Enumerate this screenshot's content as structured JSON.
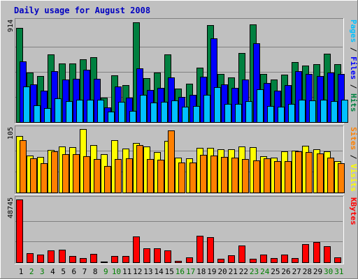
{
  "title": "Daily usage for August 2008",
  "colors": {
    "background": "#c0c0c0",
    "plot_background": "#c0c0c0",
    "border_light": "#ffffff",
    "border_dark": "#808080",
    "grid": "#808080",
    "title_text": "#0000c0",
    "hits": "#008040",
    "files": "#0000ff",
    "pages": "#00c0ff",
    "visits": "#ffff00",
    "sites": "#ff8000",
    "kbytes": "#ff0000",
    "weekday_label": "#000000",
    "weekend_label": "#008000"
  },
  "chart_data": [
    {
      "type": "bar",
      "panel": "top",
      "ymax_label": "914",
      "ylim": [
        0,
        914
      ],
      "right_label": {
        "parts": [
          {
            "text": "Pages",
            "color": "#00c0ff"
          },
          {
            "text": " / ",
            "color": "#000000"
          },
          {
            "text": "Files",
            "color": "#0000ff"
          },
          {
            "text": " / ",
            "color": "#000000"
          },
          {
            "text": "Hits",
            "color": "#008040"
          }
        ]
      },
      "categories": [
        "1",
        "2",
        "3",
        "4",
        "5",
        "6",
        "7",
        "8",
        "9",
        "10",
        "11",
        "12",
        "13",
        "14",
        "15",
        "16",
        "17",
        "18",
        "19",
        "20",
        "21",
        "22",
        "23",
        "24",
        "25",
        "26",
        "27",
        "28",
        "29",
        "30",
        "31"
      ],
      "series": [
        {
          "name": "Hits",
          "color": "#008040",
          "values": [
            859,
            449,
            416,
            617,
            533,
            535,
            573,
            593,
            220,
            423,
            337,
            910,
            402,
            450,
            613,
            306,
            346,
            496,
            884,
            439,
            404,
            630,
            886,
            440,
            386,
            432,
            548,
            517,
            528,
            620,
            525
          ]
        },
        {
          "name": "Files",
          "color": "#0000ff",
          "values": [
            553,
            343,
            284,
            464,
            385,
            395,
            476,
            395,
            135,
            323,
            225,
            490,
            290,
            308,
            408,
            230,
            248,
            410,
            764,
            342,
            314,
            385,
            718,
            357,
            285,
            335,
            464,
            435,
            421,
            451,
            437
          ]
        },
        {
          "name": "Pages",
          "color": "#00c0ff",
          "values": [
            322,
            155,
            124,
            215,
            189,
            204,
            202,
            200,
            95,
            181,
            104,
            248,
            176,
            184,
            197,
            142,
            145,
            245,
            318,
            162,
            166,
            193,
            300,
            145,
            141,
            166,
            204,
            195,
            200,
            190,
            200
          ]
        }
      ]
    },
    {
      "type": "bar",
      "panel": "middle",
      "ymax_label": "105",
      "ylim": [
        0,
        105
      ],
      "right_label": {
        "parts": [
          {
            "text": "Sites",
            "color": "#ff8000"
          },
          {
            "text": " / ",
            "color": "#000000"
          },
          {
            "text": "Visits",
            "color": "#ffff00"
          }
        ]
      },
      "categories": [
        "1",
        "2",
        "3",
        "4",
        "5",
        "6",
        "7",
        "8",
        "9",
        "10",
        "11",
        "12",
        "13",
        "14",
        "15",
        "16",
        "17",
        "18",
        "19",
        "20",
        "21",
        "22",
        "23",
        "24",
        "25",
        "26",
        "27",
        "28",
        "29",
        "30",
        "31"
      ],
      "series": [
        {
          "name": "Visits",
          "color": "#ffff00",
          "values": [
            93,
            61,
            59,
            70,
            76,
            75,
            105,
            78,
            64,
            86,
            73,
            82,
            76,
            67,
            85,
            58,
            56,
            74,
            74,
            71,
            71,
            76,
            75,
            60,
            58,
            68,
            69,
            77,
            71,
            68,
            52
          ]
        },
        {
          "name": "Sites",
          "color": "#ff8000",
          "values": [
            87,
            56,
            49,
            68,
            63,
            63,
            60,
            55,
            44,
            55,
            56,
            78,
            55,
            54,
            103,
            50,
            50,
            62,
            61,
            59,
            58,
            55,
            53,
            56,
            52,
            52,
            68,
            67,
            65,
            58,
            49
          ]
        }
      ]
    },
    {
      "type": "bar",
      "panel": "bottom",
      "ymax_label": "48745",
      "ylim": [
        0,
        48745
      ],
      "right_label": {
        "parts": [
          {
            "text": "KBytes",
            "color": "#ff0000"
          }
        ]
      },
      "categories": [
        "1",
        "2",
        "3",
        "4",
        "5",
        "6",
        "7",
        "8",
        "9",
        "10",
        "11",
        "12",
        "13",
        "14",
        "15",
        "16",
        "17",
        "18",
        "19",
        "20",
        "21",
        "22",
        "23",
        "24",
        "25",
        "26",
        "27",
        "28",
        "29",
        "30",
        "31"
      ],
      "series": [
        {
          "name": "KBytes",
          "color": "#ff0000",
          "values": [
            48745,
            7000,
            6000,
            9000,
            10000,
            5000,
            3000,
            6500,
            800,
            5000,
            4800,
            20000,
            10900,
            10600,
            9300,
            1300,
            4000,
            20600,
            19600,
            2500,
            5200,
            13000,
            2800,
            6000,
            3000,
            5700,
            3000,
            13900,
            15500,
            12500,
            4000
          ]
        }
      ]
    }
  ],
  "days": [
    {
      "label": "1",
      "weekend": false
    },
    {
      "label": "2",
      "weekend": true
    },
    {
      "label": "3",
      "weekend": true
    },
    {
      "label": "4",
      "weekend": false
    },
    {
      "label": "5",
      "weekend": false
    },
    {
      "label": "6",
      "weekend": false
    },
    {
      "label": "7",
      "weekend": false
    },
    {
      "label": "8",
      "weekend": false
    },
    {
      "label": "9",
      "weekend": true
    },
    {
      "label": "10",
      "weekend": true
    },
    {
      "label": "11",
      "weekend": false
    },
    {
      "label": "12",
      "weekend": false
    },
    {
      "label": "13",
      "weekend": false
    },
    {
      "label": "14",
      "weekend": false
    },
    {
      "label": "15",
      "weekend": false
    },
    {
      "label": "16",
      "weekend": true
    },
    {
      "label": "17",
      "weekend": true
    },
    {
      "label": "18",
      "weekend": false
    },
    {
      "label": "19",
      "weekend": false
    },
    {
      "label": "20",
      "weekend": false
    },
    {
      "label": "21",
      "weekend": false
    },
    {
      "label": "22",
      "weekend": false
    },
    {
      "label": "23",
      "weekend": true
    },
    {
      "label": "24",
      "weekend": true
    },
    {
      "label": "25",
      "weekend": false
    },
    {
      "label": "26",
      "weekend": false
    },
    {
      "label": "27",
      "weekend": false
    },
    {
      "label": "28",
      "weekend": false
    },
    {
      "label": "29",
      "weekend": false
    },
    {
      "label": "30",
      "weekend": true
    },
    {
      "label": "31",
      "weekend": true
    }
  ]
}
